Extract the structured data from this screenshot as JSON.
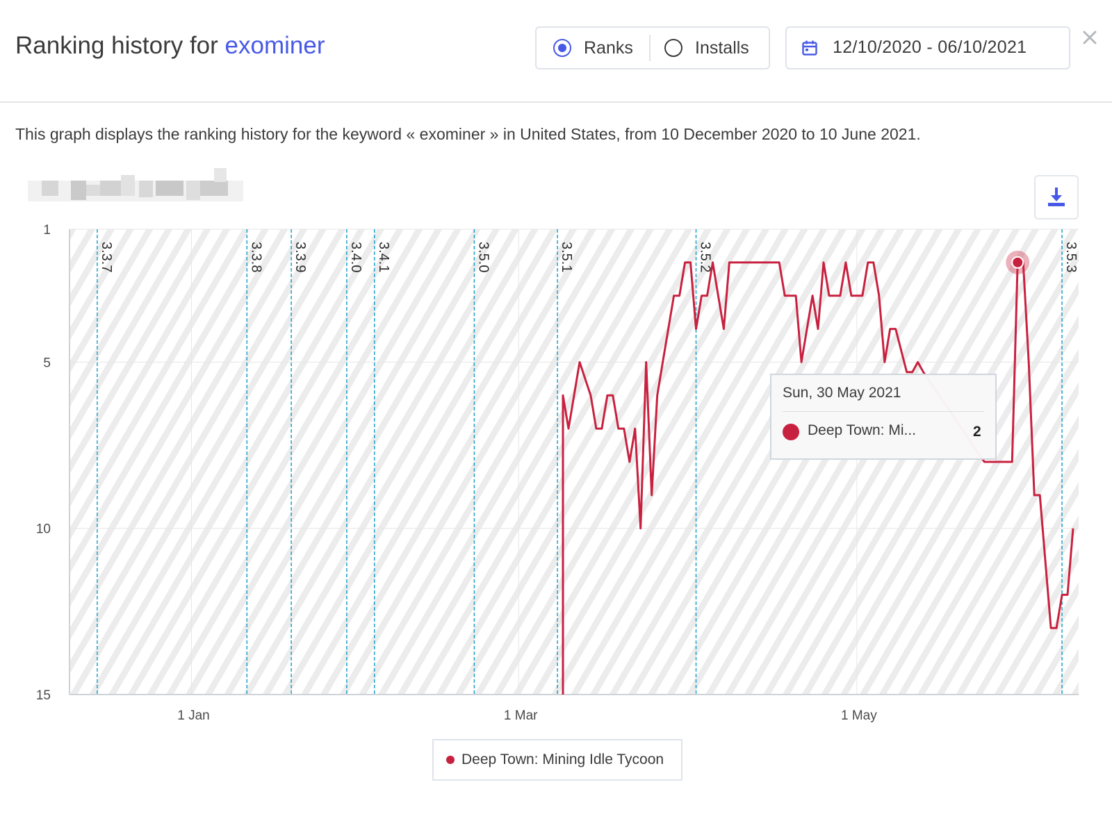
{
  "header": {
    "title_prefix": "Ranking history for",
    "keyword": "exominer",
    "toggle": {
      "ranks_label": "Ranks",
      "installs_label": "Installs",
      "selected": "Ranks"
    },
    "date_range": "12/10/2020 - 06/10/2021"
  },
  "description": "This graph displays the ranking history for the keyword « exominer » in United States, from 10 December 2020 to 10 June 2021.",
  "colors": {
    "accent": "#4759e6",
    "series": "#c8213f",
    "release_line": "#1aa0c8"
  },
  "chart_data": {
    "type": "line",
    "x_start": "2020-12-10",
    "x_end": "2021-06-10",
    "y_inverted": true,
    "ylim": [
      1,
      15
    ],
    "y_ticks": [
      "1",
      "5",
      "10",
      "15"
    ],
    "x_ticks": [
      {
        "date": "2021-01-01",
        "label": "1 Jan"
      },
      {
        "date": "2021-03-01",
        "label": "1 Mar"
      },
      {
        "date": "2021-05-01",
        "label": "1 May"
      }
    ],
    "releases": [
      {
        "date": "2020-12-15",
        "label": "3.3.7"
      },
      {
        "date": "2021-01-11",
        "label": "3.3.8"
      },
      {
        "date": "2021-01-19",
        "label": "3.3.9"
      },
      {
        "date": "2021-01-29",
        "label": "3.4.0"
      },
      {
        "date": "2021-02-03",
        "label": "3.4.1"
      },
      {
        "date": "2021-02-21",
        "label": "3.5.0"
      },
      {
        "date": "2021-03-08",
        "label": "3.5.1"
      },
      {
        "date": "2021-04-02",
        "label": "3.5.2"
      },
      {
        "date": "2021-06-07",
        "label": "3.5.3"
      }
    ],
    "series": [
      {
        "name": "Deep Town: Mining Idle Tycoon",
        "data": [
          [
            "2021-03-09",
            15
          ],
          [
            "2021-03-09",
            6
          ],
          [
            "2021-03-10",
            7
          ],
          [
            "2021-03-12",
            5
          ],
          [
            "2021-03-14",
            6
          ],
          [
            "2021-03-15",
            7
          ],
          [
            "2021-03-16",
            7
          ],
          [
            "2021-03-17",
            6
          ],
          [
            "2021-03-18",
            6
          ],
          [
            "2021-03-19",
            7
          ],
          [
            "2021-03-20",
            7
          ],
          [
            "2021-03-21",
            8
          ],
          [
            "2021-03-22",
            7
          ],
          [
            "2021-03-23",
            10
          ],
          [
            "2021-03-24",
            5
          ],
          [
            "2021-03-25",
            9
          ],
          [
            "2021-03-26",
            6
          ],
          [
            "2021-03-27",
            5
          ],
          [
            "2021-03-28",
            4
          ],
          [
            "2021-03-29",
            3
          ],
          [
            "2021-03-30",
            3
          ],
          [
            "2021-03-31",
            2
          ],
          [
            "2021-04-01",
            2
          ],
          [
            "2021-04-02",
            4
          ],
          [
            "2021-04-03",
            3
          ],
          [
            "2021-04-04",
            3
          ],
          [
            "2021-04-05",
            2
          ],
          [
            "2021-04-06",
            3
          ],
          [
            "2021-04-07",
            4
          ],
          [
            "2021-04-08",
            2
          ],
          [
            "2021-04-17",
            2
          ],
          [
            "2021-04-18",
            3
          ],
          [
            "2021-04-20",
            3
          ],
          [
            "2021-04-21",
            5
          ],
          [
            "2021-04-23",
            3
          ],
          [
            "2021-04-24",
            4
          ],
          [
            "2021-04-25",
            2
          ],
          [
            "2021-04-26",
            3
          ],
          [
            "2021-04-28",
            3
          ],
          [
            "2021-04-29",
            2
          ],
          [
            "2021-04-30",
            3
          ],
          [
            "2021-05-02",
            3
          ],
          [
            "2021-05-03",
            2
          ],
          [
            "2021-05-04",
            2
          ],
          [
            "2021-05-05",
            3
          ],
          [
            "2021-05-06",
            5
          ],
          [
            "2021-05-07",
            4
          ],
          [
            "2021-05-08",
            4
          ],
          [
            "2021-05-10",
            5.3
          ],
          [
            "2021-05-11",
            5.3
          ],
          [
            "2021-05-12",
            5
          ],
          [
            "2021-05-13",
            5.3
          ],
          [
            "2021-05-24",
            8
          ],
          [
            "2021-05-28",
            8
          ],
          [
            "2021-05-29",
            8
          ],
          [
            "2021-05-30",
            2
          ],
          [
            "2021-05-31",
            2
          ],
          [
            "2021-06-01",
            5
          ],
          [
            "2021-06-02",
            9
          ],
          [
            "2021-06-03",
            9
          ],
          [
            "2021-06-05",
            13
          ],
          [
            "2021-06-06",
            13
          ],
          [
            "2021-06-07",
            12
          ],
          [
            "2021-06-08",
            12
          ],
          [
            "2021-06-09",
            10
          ]
        ]
      }
    ],
    "highlight": {
      "date": "2021-05-30",
      "value": 2
    }
  },
  "tooltip": {
    "date_label": "Sun, 30 May 2021",
    "series_label": "Deep Town: Mi...",
    "value": "2"
  },
  "legend": {
    "label": "Deep Town: Mining Idle Tycoon"
  }
}
